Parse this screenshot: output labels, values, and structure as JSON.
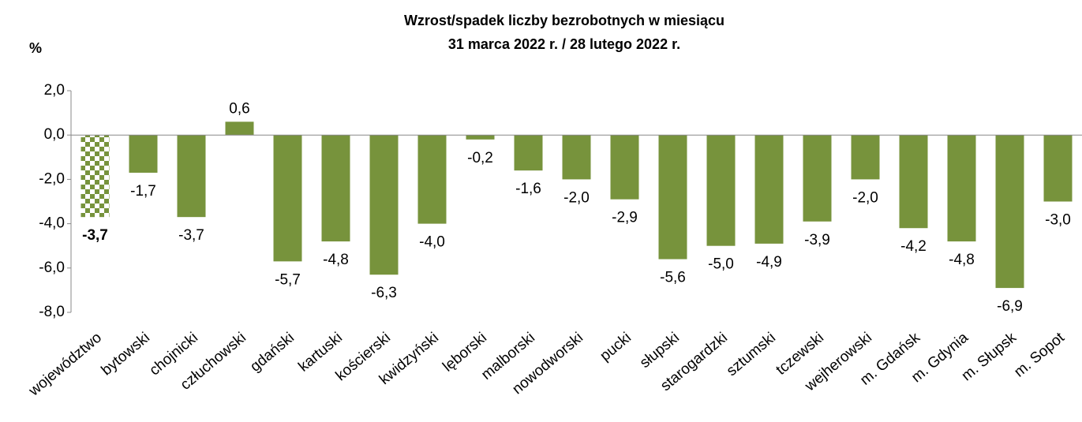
{
  "chart_data": {
    "type": "bar",
    "title": [
      "Wzrost/spadek liczby bezrobotnych w miesiącu",
      "31 marca 2022 r. / 28 lutego 2022 r."
    ],
    "y_label": "%",
    "categories": [
      "województwo",
      "bytowski",
      "chojnicki",
      "człuchowski",
      "gdański",
      "kartuski",
      "kościerski",
      "kwidzyński",
      "lęborski",
      "malborski",
      "nowodworski",
      "pucki",
      "słupski",
      "starogardzki",
      "sztumski",
      "tczewski",
      "wejherowski",
      "m. Gdańsk",
      "m. Gdynia",
      "m. Słupsk",
      "m. Sopot"
    ],
    "values": [
      -3.7,
      -1.7,
      -3.7,
      0.6,
      -5.7,
      -4.8,
      -6.3,
      -4.0,
      -0.2,
      -1.6,
      -2.0,
      -2.9,
      -5.6,
      -5.0,
      -4.9,
      -3.9,
      -2.0,
      -4.2,
      -4.8,
      -6.9,
      -3.0
    ],
    "value_labels": [
      "-3,7",
      "-1,7",
      "-3,7",
      "0,6",
      "-5,7",
      "-4,8",
      "-6,3",
      "-4,0",
      "-0,2",
      "-1,6",
      "-2,0",
      "-2,9",
      "-5,6",
      "-5,0",
      "-4,9",
      "-3,9",
      "-2,0",
      "-4,2",
      "-4,8",
      "-6,9",
      "-3,0"
    ],
    "color": "#77933c",
    "ylim": [
      -8,
      2
    ],
    "yticks": [
      {
        "value": -8,
        "label": "-8,0"
      },
      {
        "value": -6,
        "label": "-6,0"
      },
      {
        "value": -4,
        "label": "-4,0"
      },
      {
        "value": -2,
        "label": "-2,0"
      },
      {
        "value": 0,
        "label": "0,0"
      },
      {
        "value": 2,
        "label": "2,0"
      }
    ],
    "grid": false
  }
}
